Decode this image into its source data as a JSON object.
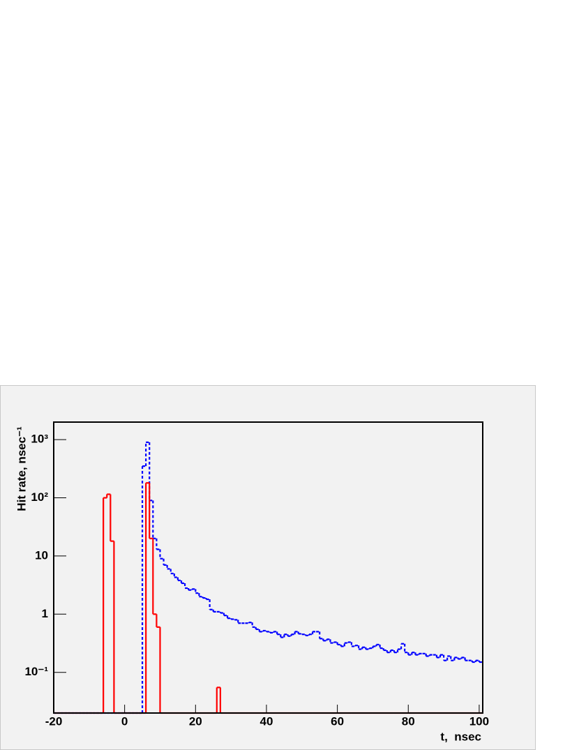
{
  "chart_data": {
    "type": "histogram",
    "xlabel": "t,  nsec",
    "ylabel": "Hit rate, nsec⁻¹",
    "logy": true,
    "xlim": [
      -20,
      101
    ],
    "ylim": [
      0.02,
      2000
    ],
    "xticks": [
      -20,
      0,
      20,
      40,
      60,
      80,
      100
    ],
    "yticks": [
      {
        "value": 1000,
        "label": "10³"
      },
      {
        "value": 100,
        "label": "10²"
      },
      10,
      1,
      {
        "value": 0.1,
        "label": "10⁻¹"
      }
    ],
    "bins": [
      -20,
      -19,
      -18,
      -17,
      -16,
      -15,
      -14,
      -13,
      -12,
      -11,
      -10,
      -9,
      -8,
      -7,
      -6,
      -5,
      -4,
      -3,
      -2,
      -1,
      0,
      1,
      2,
      3,
      4,
      5,
      6,
      7,
      8,
      9,
      10,
      11,
      12,
      13,
      14,
      15,
      16,
      17,
      18,
      19,
      20,
      21,
      22,
      23,
      24,
      25,
      26,
      27,
      28,
      29,
      30,
      31,
      32,
      33,
      34,
      35,
      36,
      37,
      38,
      39,
      40,
      41,
      42,
      43,
      44,
      45,
      46,
      47,
      48,
      49,
      50,
      51,
      52,
      53,
      54,
      55,
      56,
      57,
      58,
      59,
      60,
      61,
      62,
      63,
      64,
      65,
      66,
      67,
      68,
      69,
      70,
      71,
      72,
      73,
      74,
      75,
      76,
      77,
      78,
      79,
      80,
      81,
      82,
      83,
      84,
      85,
      86,
      87,
      88,
      89,
      90,
      91,
      92,
      93,
      94,
      95,
      96,
      97,
      98,
      99,
      100,
      101
    ],
    "series": [
      {
        "color": "#0000ff",
        "dashed": true,
        "values": [
          0,
          0,
          0,
          0,
          0,
          0,
          0,
          0,
          0,
          0,
          0,
          0,
          0,
          0,
          0,
          0,
          0,
          0,
          0,
          0,
          0,
          0,
          0,
          0,
          0,
          350,
          900,
          90,
          20,
          13,
          9,
          7,
          6,
          5,
          4.3,
          3.8,
          3.4,
          2.8,
          2.6,
          2.7,
          2.3,
          2.0,
          1.9,
          1.8,
          1.2,
          1.1,
          1.1,
          1.05,
          0.95,
          0.85,
          0.82,
          0.8,
          0.7,
          0.7,
          0.7,
          0.72,
          0.6,
          0.55,
          0.5,
          0.52,
          0.5,
          0.48,
          0.5,
          0.45,
          0.4,
          0.45,
          0.42,
          0.45,
          0.5,
          0.46,
          0.45,
          0.43,
          0.45,
          0.5,
          0.5,
          0.38,
          0.35,
          0.37,
          0.32,
          0.33,
          0.3,
          0.28,
          0.32,
          0.33,
          0.28,
          0.29,
          0.25,
          0.27,
          0.25,
          0.26,
          0.28,
          0.3,
          0.26,
          0.24,
          0.22,
          0.24,
          0.22,
          0.25,
          0.31,
          0.22,
          0.2,
          0.22,
          0.2,
          0.21,
          0.21,
          0.19,
          0.2,
          0.2,
          0.18,
          0.2,
          0.16,
          0.19,
          0.16,
          0.18,
          0.17,
          0.18,
          0.16,
          0.16,
          0.15,
          0.16,
          0.15
        ]
      },
      {
        "color": "#ff0000",
        "dashed": false,
        "values": [
          0,
          0,
          0,
          0,
          0,
          0,
          0,
          0,
          0,
          0,
          0,
          0,
          0,
          0,
          100,
          115,
          18,
          0,
          0,
          0,
          0,
          0,
          0,
          0,
          0,
          0,
          180,
          20,
          1,
          0.6,
          0,
          0,
          0,
          0,
          0,
          0,
          0,
          0,
          0,
          0,
          0,
          0,
          0,
          0,
          0,
          0,
          0.055,
          0,
          0,
          0,
          0,
          0,
          0,
          0,
          0,
          0,
          0,
          0,
          0,
          0,
          0,
          0,
          0,
          0,
          0,
          0,
          0,
          0,
          0,
          0,
          0,
          0,
          0,
          0,
          0,
          0,
          0,
          0,
          0,
          0,
          0,
          0,
          0,
          0,
          0,
          0,
          0,
          0,
          0,
          0,
          0,
          0,
          0,
          0,
          0,
          0,
          0,
          0,
          0,
          0,
          0,
          0,
          0,
          0,
          0,
          0,
          0,
          0,
          0,
          0,
          0,
          0,
          0,
          0,
          0,
          0,
          0,
          0,
          0,
          0,
          0
        ]
      }
    ]
  }
}
